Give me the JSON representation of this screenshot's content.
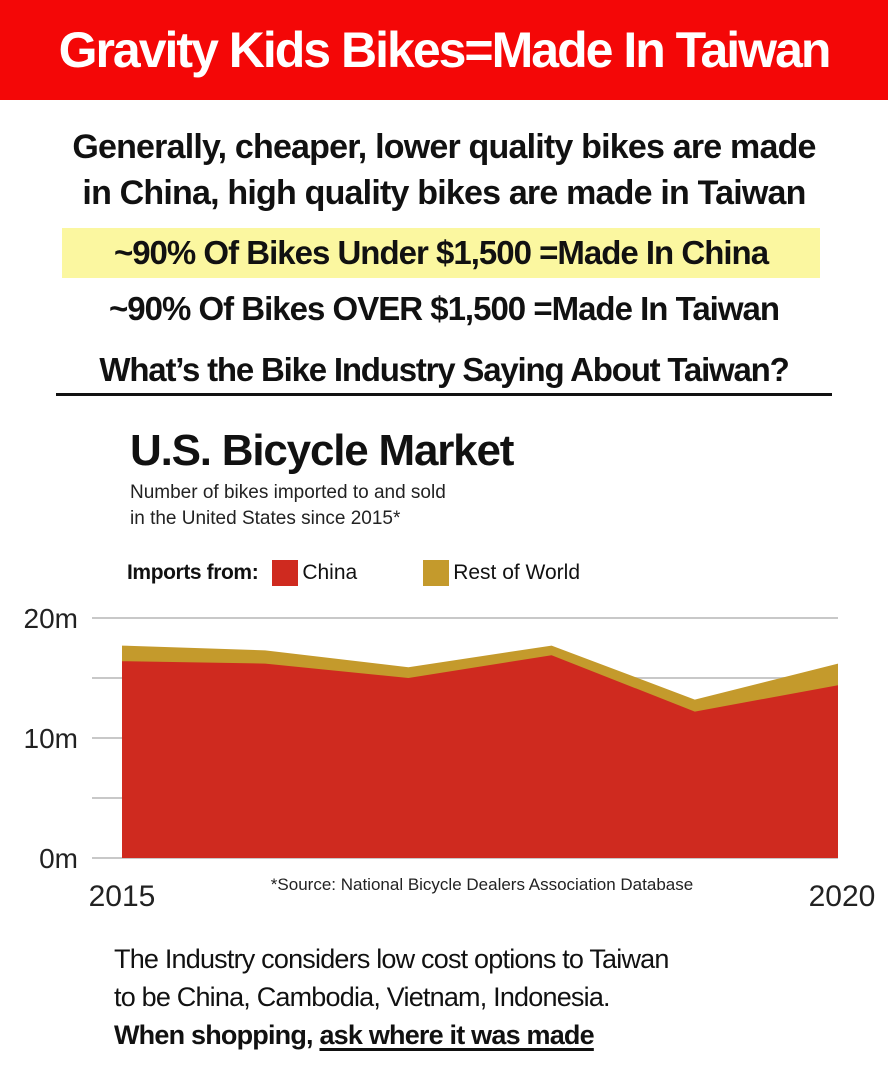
{
  "banner": {
    "title": "Gravity Kids Bikes=Made In Taiwan"
  },
  "intro": {
    "line1": "Generally, cheaper, lower quality bikes are made",
    "line2": "in China, high quality bikes are made in Taiwan"
  },
  "stats": {
    "under": "~90% Of Bikes Under $1,500 =Made In China",
    "over": "~90% Of Bikes OVER $1,500 =Made In Taiwan"
  },
  "question": "What’s the Bike Industry Saying About Taiwan?",
  "colors": {
    "banner": "#f40707",
    "china": "#cf2a1f",
    "rest": "#c49a2c",
    "highlight": "#fbf7a0",
    "grid": "#c8c8c8"
  },
  "chart_data": {
    "type": "area",
    "title": "U.S. Bicycle Market",
    "subtitle_line1": "Number of bikes imported to and sold",
    "subtitle_line2": "in the United States since 2015*",
    "legend_label": "Imports from:",
    "stacked": true,
    "x": [
      2015,
      2016,
      2017,
      2018,
      2019,
      2020
    ],
    "series": [
      {
        "name": "China",
        "values": [
          16.4,
          16.2,
          15.0,
          16.9,
          12.2,
          14.4
        ],
        "color": "#cf2a1f"
      },
      {
        "name": "Rest of World",
        "values": [
          1.3,
          1.1,
          0.9,
          0.8,
          1.0,
          1.8
        ],
        "color": "#c49a2c"
      }
    ],
    "ylim": [
      0,
      20
    ],
    "yticks": [
      "0m",
      "10m",
      "20m"
    ],
    "xticks": [
      "2015",
      "2020"
    ],
    "grid": true,
    "source_note": "*Source: National Bicycle Dealers Association Database"
  },
  "footer": {
    "line1": "The Industry considers low cost options to Taiwan",
    "line2": "to be China, Cambodia, Vietnam, Indonesia.",
    "bold_prefix": "When shopping, ",
    "underlined": "ask where it was made"
  }
}
